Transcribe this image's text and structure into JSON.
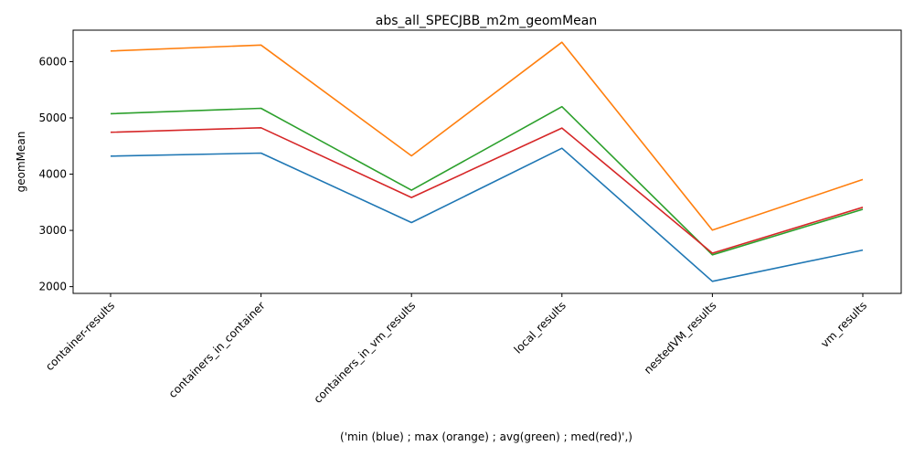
{
  "chart_data": {
    "type": "line",
    "title": "abs_all_SPECJBB_m2m_geomMean",
    "xlabel": "('min (blue) ; max (orange) ; avg(green) ; med(red)',)",
    "ylabel": "geomMean",
    "categories": [
      "container-results",
      "containers_in_container",
      "containers_in_vm_results",
      "local_results",
      "nestedVM_results",
      "vm_results"
    ],
    "ylim": [
      1880,
      6560
    ],
    "yticks": [
      2000,
      3000,
      4000,
      5000,
      6000
    ],
    "grid": false,
    "series": [
      {
        "color": "#1f77b4",
        "values": [
          4320,
          4375,
          3140,
          4460,
          2095,
          2650
        ]
      },
      {
        "color": "#ff7f0e",
        "values": [
          6190,
          6295,
          4325,
          6345,
          3005,
          3905
        ]
      },
      {
        "color": "#2ca02c",
        "values": [
          5075,
          5170,
          3715,
          5200,
          2565,
          3375
        ]
      },
      {
        "color": "#d62728",
        "values": [
          4745,
          4825,
          3585,
          4820,
          2595,
          3410
        ]
      }
    ]
  }
}
